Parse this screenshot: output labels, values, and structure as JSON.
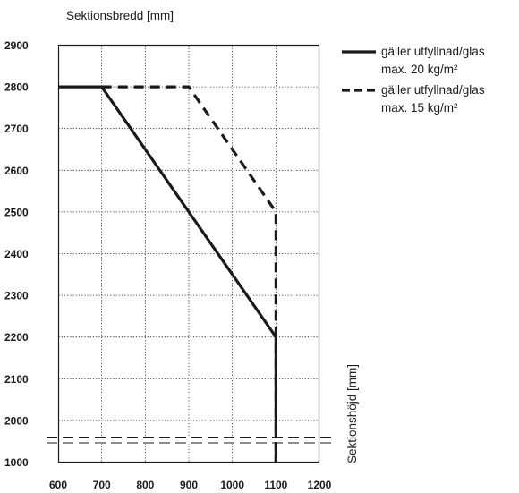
{
  "chart_data": {
    "type": "line",
    "xlabel": "Sektionsbredd [mm]",
    "ylabel": "Sektionshöjd [mm]",
    "xlim": [
      600,
      1200
    ],
    "x_ticks": [
      "600",
      "700",
      "800",
      "900",
      "1000",
      "1100",
      "1200"
    ],
    "y_ticks": [
      "2900",
      "2800",
      "2700",
      "2600",
      "2500",
      "2400",
      "2300",
      "2200",
      "2100",
      "2000",
      "1000"
    ],
    "y_axis_break": "between 1000 and 2000",
    "grid": true,
    "legend_position": "right",
    "series": [
      {
        "name": "gäller utfyllnad/glas max. 20 kg/m²",
        "legend_lines": [
          "gäller utfyllnad/glas",
          "max. 20 kg/m²"
        ],
        "style": "solid",
        "color": "#1a1a1a",
        "points": [
          [
            600,
            2800
          ],
          [
            700,
            2800
          ],
          [
            1100,
            2200
          ],
          [
            1100,
            1000
          ]
        ]
      },
      {
        "name": "gäller utfyllnad/glas max. 15 kg/m²",
        "legend_lines": [
          "gäller utfyllnad/glas",
          "max. 15 kg/m²"
        ],
        "style": "dashed",
        "color": "#1a1a1a",
        "points": [
          [
            700,
            2800
          ],
          [
            900,
            2800
          ],
          [
            1100,
            2500
          ],
          [
            1100,
            1000
          ]
        ]
      }
    ]
  }
}
